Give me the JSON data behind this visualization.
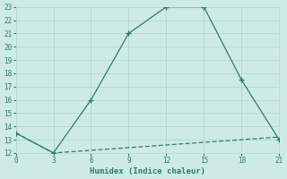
{
  "line1_x": [
    0,
    3,
    6,
    9,
    12,
    15,
    18,
    21
  ],
  "line1_y": [
    13.5,
    12,
    16,
    21,
    23,
    23,
    17.5,
    13
  ],
  "line2_x": [
    0,
    3,
    6,
    9,
    12,
    15,
    18,
    21
  ],
  "line2_y": [
    13.5,
    12,
    12.2,
    12.4,
    12.6,
    12.8,
    13.0,
    13.2
  ],
  "line_color": "#2a7d6f",
  "bg_color": "#ceeae5",
  "grid_color": "#b2d8d2",
  "xlabel": "Humidex (Indice chaleur)",
  "xlim": [
    0,
    21
  ],
  "ylim": [
    12,
    23
  ],
  "xticks": [
    0,
    3,
    6,
    9,
    12,
    15,
    18,
    21
  ],
  "yticks": [
    12,
    13,
    14,
    15,
    16,
    17,
    18,
    19,
    20,
    21,
    22,
    23
  ],
  "markersize": 3,
  "linewidth": 0.9,
  "tick_fontsize": 5.5,
  "xlabel_fontsize": 6.5
}
